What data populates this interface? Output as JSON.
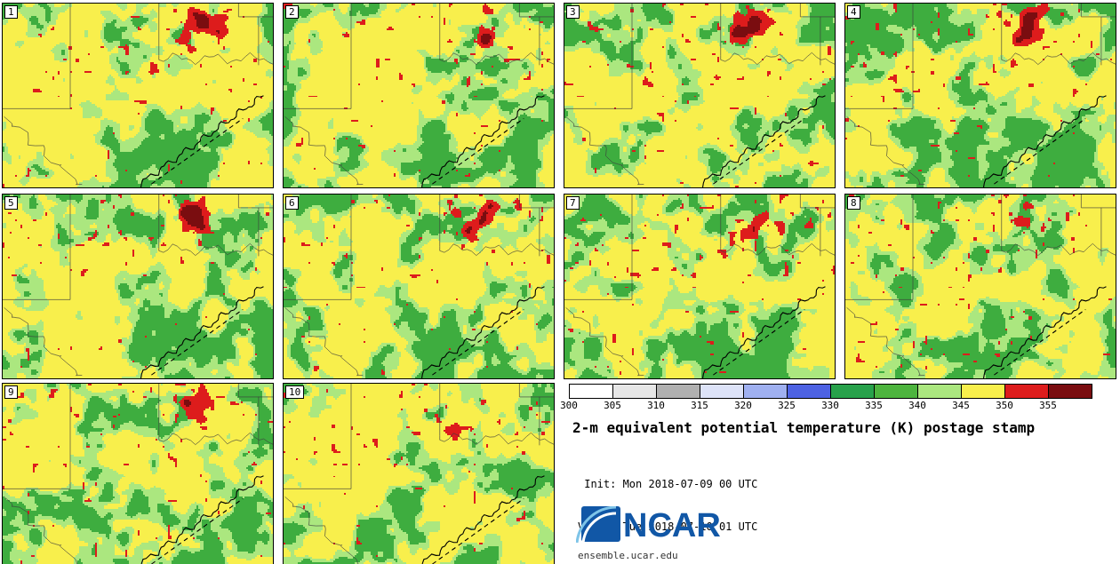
{
  "title": "2-m equivalent potential temperature (K) postage stamp",
  "init_line": " Init: Mon 2018-07-09 00 UTC",
  "valid_line": "Valid: Tue 2018-07-10 01 UTC",
  "logo": {
    "text": "NCAR",
    "site": "ensemble.ucar.edu"
  },
  "panels": [
    {
      "label": "1"
    },
    {
      "label": "2"
    },
    {
      "label": "3"
    },
    {
      "label": "4"
    },
    {
      "label": "5"
    },
    {
      "label": "6"
    },
    {
      "label": "7"
    },
    {
      "label": "8"
    },
    {
      "label": "9"
    },
    {
      "label": "10"
    }
  ],
  "legend": {
    "ticks": [
      "300",
      "305",
      "310",
      "315",
      "320",
      "325",
      "330",
      "335",
      "340",
      "345",
      "350",
      "355"
    ],
    "colors": [
      "#ffffff",
      "#e6e6e6",
      "#b0b0b0",
      "#dde3f8",
      "#9fb0f0",
      "#4d62e3",
      "#28a14b",
      "#4db43e",
      "#abe77f",
      "#f8ef4c",
      "#dd1c1c",
      "#7a0d10"
    ]
  },
  "map_colors": {
    "yellow": "#f8ef4c",
    "light_green": "#abe77f",
    "green": "#3ead3f",
    "red": "#dd1c1c",
    "dark_red": "#7a0d10",
    "boundary": "#3c3c3c"
  }
}
